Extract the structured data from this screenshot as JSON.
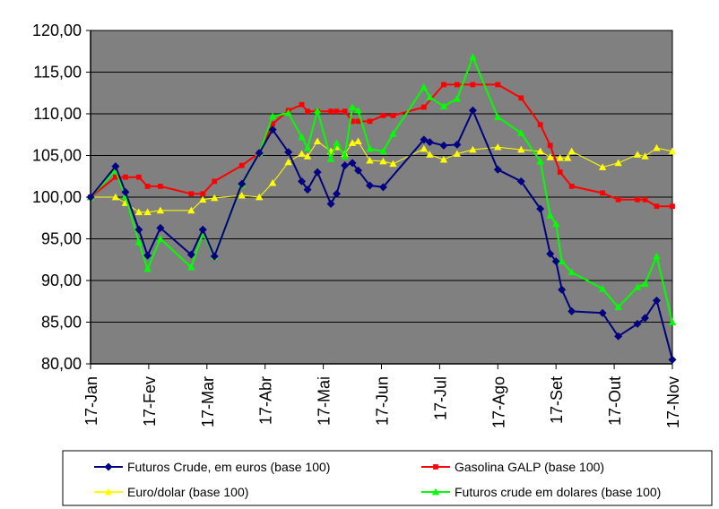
{
  "chart_data": {
    "type": "line",
    "title": "",
    "xlabel": "",
    "ylabel": "",
    "ylim": [
      80,
      120
    ],
    "y_ticks": [
      "80,00",
      "85,00",
      "90,00",
      "95,00",
      "100,00",
      "105,00",
      "110,00",
      "115,00",
      "120,00"
    ],
    "y_tick_values": [
      80,
      85,
      90,
      95,
      100,
      105,
      110,
      115,
      120
    ],
    "x_tick_labels": [
      "17-Jan",
      "17-Fev",
      "17-Mar",
      "17-Abr",
      "17-Mai",
      "17-Jun",
      "17-Jul",
      "17-Ago",
      "17-Set",
      "17-Out",
      "17-Nov"
    ],
    "x_tick_positions": [
      0,
      1,
      2,
      3,
      4,
      5,
      6,
      7,
      8,
      9,
      10
    ],
    "x_unit": "months since 17-Jan",
    "grid": "horizontal",
    "plot_background": "#808080",
    "legend_position": "bottom",
    "series": [
      {
        "name": "Futuros Crude, em euros (base 100)",
        "color": "#000080",
        "marker": "diamond",
        "points": [
          [
            0.0,
            100.0
          ],
          [
            0.43,
            103.7
          ],
          [
            0.6,
            100.6
          ],
          [
            0.83,
            96.1
          ],
          [
            0.98,
            93.0
          ],
          [
            1.2,
            96.3
          ],
          [
            1.73,
            93.1
          ],
          [
            1.93,
            96.1
          ],
          [
            2.13,
            92.9
          ],
          [
            2.6,
            101.6
          ],
          [
            2.9,
            105.3
          ],
          [
            3.13,
            108.1
          ],
          [
            3.4,
            105.4
          ],
          [
            3.63,
            101.9
          ],
          [
            3.73,
            100.9
          ],
          [
            3.9,
            103.0
          ],
          [
            4.13,
            99.2
          ],
          [
            4.23,
            100.4
          ],
          [
            4.37,
            103.8
          ],
          [
            4.5,
            104.1
          ],
          [
            4.6,
            103.2
          ],
          [
            4.8,
            101.4
          ],
          [
            5.03,
            101.2
          ],
          [
            5.73,
            106.9
          ],
          [
            5.83,
            106.6
          ],
          [
            6.07,
            106.2
          ],
          [
            6.3,
            106.3
          ],
          [
            6.57,
            110.4
          ],
          [
            7.0,
            103.3
          ],
          [
            7.4,
            101.9
          ],
          [
            7.73,
            98.6
          ],
          [
            7.9,
            93.2
          ],
          [
            8.0,
            92.3
          ],
          [
            8.1,
            88.9
          ],
          [
            8.27,
            86.3
          ],
          [
            8.8,
            86.1
          ],
          [
            9.07,
            83.3
          ],
          [
            9.4,
            84.8
          ],
          [
            9.53,
            85.5
          ],
          [
            9.73,
            87.6
          ],
          [
            10.0,
            80.5
          ]
        ]
      },
      {
        "name": "Gasolina GALP (base 100)",
        "color": "#ff0000",
        "marker": "square",
        "points": [
          [
            0.0,
            100.0
          ],
          [
            0.43,
            102.4
          ],
          [
            0.6,
            102.4
          ],
          [
            0.83,
            102.4
          ],
          [
            0.98,
            101.3
          ],
          [
            1.2,
            101.3
          ],
          [
            1.73,
            100.4
          ],
          [
            1.93,
            100.4
          ],
          [
            2.13,
            101.9
          ],
          [
            2.6,
            103.8
          ],
          [
            2.9,
            105.3
          ],
          [
            3.13,
            108.8
          ],
          [
            3.4,
            110.4
          ],
          [
            3.63,
            111.1
          ],
          [
            3.73,
            110.3
          ],
          [
            3.9,
            110.3
          ],
          [
            4.13,
            110.3
          ],
          [
            4.23,
            110.3
          ],
          [
            4.37,
            110.3
          ],
          [
            4.5,
            109.1
          ],
          [
            4.6,
            109.1
          ],
          [
            4.8,
            109.1
          ],
          [
            5.03,
            109.8
          ],
          [
            5.2,
            109.8
          ],
          [
            5.73,
            110.8
          ],
          [
            6.07,
            113.5
          ],
          [
            6.3,
            113.5
          ],
          [
            6.57,
            113.5
          ],
          [
            7.0,
            113.5
          ],
          [
            7.4,
            111.9
          ],
          [
            7.73,
            108.7
          ],
          [
            7.9,
            106.2
          ],
          [
            8.07,
            103.0
          ],
          [
            8.27,
            101.3
          ],
          [
            8.8,
            100.5
          ],
          [
            9.07,
            99.7
          ],
          [
            9.4,
            99.7
          ],
          [
            9.53,
            99.7
          ],
          [
            9.73,
            98.9
          ],
          [
            10.0,
            98.9
          ]
        ]
      },
      {
        "name": "Euro/dolar (base 100)",
        "color": "#ffff00",
        "marker": "triangle",
        "points": [
          [
            0.0,
            100.0
          ],
          [
            0.43,
            100.0
          ],
          [
            0.6,
            99.3
          ],
          [
            0.83,
            98.2
          ],
          [
            0.98,
            98.2
          ],
          [
            1.2,
            98.4
          ],
          [
            1.73,
            98.4
          ],
          [
            1.93,
            99.7
          ],
          [
            2.13,
            99.9
          ],
          [
            2.6,
            100.2
          ],
          [
            2.9,
            100.0
          ],
          [
            3.13,
            101.7
          ],
          [
            3.4,
            104.2
          ],
          [
            3.63,
            105.2
          ],
          [
            3.73,
            104.9
          ],
          [
            3.9,
            106.7
          ],
          [
            4.13,
            105.5
          ],
          [
            4.23,
            106.0
          ],
          [
            4.37,
            105.2
          ],
          [
            4.5,
            106.5
          ],
          [
            4.6,
            106.7
          ],
          [
            4.8,
            104.4
          ],
          [
            5.03,
            104.3
          ],
          [
            5.2,
            104.0
          ],
          [
            5.73,
            105.8
          ],
          [
            5.83,
            105.1
          ],
          [
            6.07,
            104.5
          ],
          [
            6.3,
            105.2
          ],
          [
            6.57,
            105.7
          ],
          [
            7.0,
            106.0
          ],
          [
            7.4,
            105.7
          ],
          [
            7.73,
            105.5
          ],
          [
            7.9,
            104.8
          ],
          [
            8.07,
            104.7
          ],
          [
            8.2,
            104.7
          ],
          [
            8.27,
            105.5
          ],
          [
            8.8,
            103.6
          ],
          [
            9.07,
            104.1
          ],
          [
            9.4,
            105.1
          ],
          [
            9.53,
            104.9
          ],
          [
            9.73,
            105.9
          ],
          [
            10.0,
            105.5
          ]
        ]
      },
      {
        "name": "Futuros crude em dolares (base 100)",
        "color": "#00ff00",
        "marker": "triangle",
        "points": [
          [
            0.0,
            100.0
          ],
          [
            0.43,
            103.2
          ],
          [
            0.6,
            100.1
          ],
          [
            0.83,
            94.6
          ],
          [
            0.98,
            91.4
          ],
          [
            1.2,
            95.0
          ],
          [
            1.73,
            91.6
          ],
          [
            1.93,
            95.7
          ],
          [
            2.13,
            92.9
          ],
          [
            2.6,
            101.5
          ],
          [
            2.9,
            105.3
          ],
          [
            3.13,
            109.7
          ],
          [
            3.4,
            110.1
          ],
          [
            3.63,
            107.2
          ],
          [
            3.73,
            105.9
          ],
          [
            3.9,
            110.4
          ],
          [
            4.13,
            104.6
          ],
          [
            4.23,
            106.5
          ],
          [
            4.37,
            104.9
          ],
          [
            4.5,
            110.8
          ],
          [
            4.6,
            110.4
          ],
          [
            4.8,
            105.8
          ],
          [
            5.03,
            105.5
          ],
          [
            5.2,
            107.6
          ],
          [
            5.73,
            113.2
          ],
          [
            5.83,
            112.0
          ],
          [
            6.07,
            110.9
          ],
          [
            6.3,
            111.8
          ],
          [
            6.57,
            116.8
          ],
          [
            7.0,
            109.6
          ],
          [
            7.4,
            107.7
          ],
          [
            7.73,
            104.3
          ],
          [
            7.9,
            97.8
          ],
          [
            8.0,
            96.8
          ],
          [
            8.1,
            92.3
          ],
          [
            8.27,
            91.0
          ],
          [
            8.8,
            89.0
          ],
          [
            9.07,
            86.8
          ],
          [
            9.4,
            89.2
          ],
          [
            9.53,
            89.6
          ],
          [
            9.73,
            92.9
          ],
          [
            10.0,
            85.0
          ]
        ]
      }
    ]
  }
}
